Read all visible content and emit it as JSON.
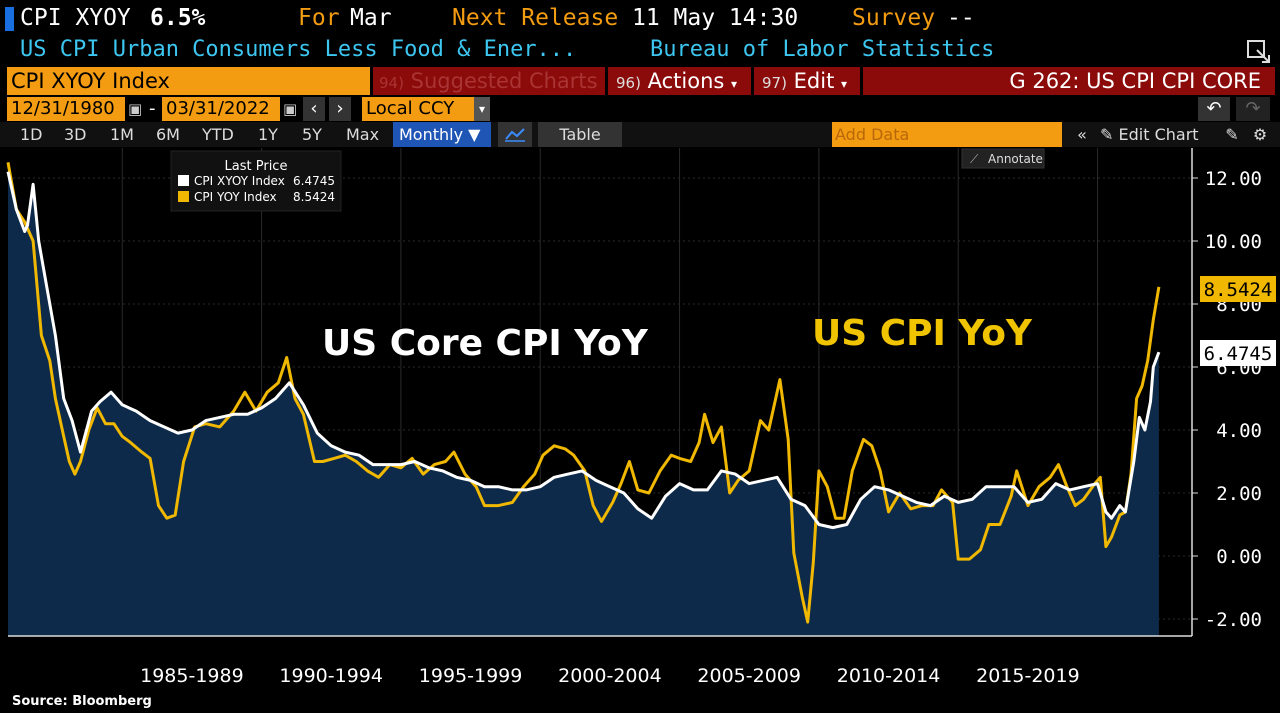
{
  "header": {
    "ticker": "CPI XYOY",
    "value": "6.5%",
    "for_label": "For",
    "for_value": "Mar",
    "next_release_label": "Next Release",
    "next_release_value": "11 May 14:30",
    "survey_label": "Survey",
    "survey_value": "--",
    "description": "US CPI Urban Consumers Less Food & Ener...",
    "source_org": "Bureau of Labor Statistics"
  },
  "command_bar": {
    "security": "CPI XYOY Index",
    "suggested_num": "94)",
    "suggested_label": "Suggested Charts",
    "actions_num": "96)",
    "actions_label": "Actions",
    "edit_num": "97)",
    "edit_label": "Edit",
    "page_title": "G 262: US CPI CPI CORE"
  },
  "date_bar": {
    "start_date": "12/31/1980",
    "separator": "-",
    "end_date": "03/31/2022",
    "currency": "Local CCY"
  },
  "toolbar": {
    "periods": [
      "1D",
      "3D",
      "1M",
      "6M",
      "YTD",
      "1Y",
      "5Y",
      "Max"
    ],
    "frequency": "Monthly",
    "table_label": "Table",
    "add_data_placeholder": "Add Data",
    "edit_chart_label": "Edit Chart",
    "annotate_label": "Annotate"
  },
  "legend": {
    "title": "Last Price",
    "items": [
      {
        "name": "CPI XYOY Index",
        "value": "6.4745",
        "color": "#ffffff"
      },
      {
        "name": "CPI YOY Index",
        "value": "8.5424",
        "color": "#f0b800"
      }
    ]
  },
  "colors": {
    "accent_orange": "#f39c12",
    "bar_red": "#8b0a0a",
    "core_series": "#ffffff",
    "headline_series": "#f0b800",
    "area_fill": "#0d2a4a"
  },
  "footer": {
    "source": "Source: Bloomberg"
  },
  "chart_data": {
    "type": "line",
    "annotations": [
      "US Core CPI YoY",
      "US CPI YoY"
    ],
    "x_tick_labels": [
      "1985-1989",
      "1990-1994",
      "1995-1999",
      "2000-2004",
      "2005-2009",
      "2010-2014",
      "2015-2019"
    ],
    "y_tick_labels": [
      "12.00",
      "10.00",
      "8.00",
      "6.00",
      "4.00",
      "2.00",
      "0.00",
      "-2.00"
    ],
    "ylim": [
      -2.6,
      13.0
    ],
    "xlim": [
      1980.9,
      2022.6
    ],
    "grid": true,
    "legend_position": "top-left",
    "last_value_labels": [
      "8.5424",
      "6.4745"
    ],
    "series": [
      {
        "name": "CPI XYOY Index",
        "color": "#ffffff",
        "fill": true,
        "points": [
          [
            1980.9,
            12.2
          ],
          [
            1981.2,
            11.0
          ],
          [
            1981.5,
            10.3
          ],
          [
            1981.6,
            10.5
          ],
          [
            1981.8,
            11.8
          ],
          [
            1982.0,
            10.0
          ],
          [
            1982.3,
            8.5
          ],
          [
            1982.6,
            7.0
          ],
          [
            1982.9,
            5.0
          ],
          [
            1983.2,
            4.3
          ],
          [
            1983.5,
            3.3
          ],
          [
            1983.9,
            4.6
          ],
          [
            1984.2,
            4.9
          ],
          [
            1984.6,
            5.2
          ],
          [
            1985.0,
            4.8
          ],
          [
            1985.5,
            4.6
          ],
          [
            1986.0,
            4.3
          ],
          [
            1986.5,
            4.1
          ],
          [
            1987.0,
            3.9
          ],
          [
            1987.5,
            4.0
          ],
          [
            1988.0,
            4.3
          ],
          [
            1988.5,
            4.4
          ],
          [
            1989.0,
            4.5
          ],
          [
            1989.5,
            4.5
          ],
          [
            1990.0,
            4.7
          ],
          [
            1990.5,
            5.0
          ],
          [
            1991.0,
            5.5
          ],
          [
            1991.5,
            4.8
          ],
          [
            1992.0,
            3.9
          ],
          [
            1992.5,
            3.5
          ],
          [
            1993.0,
            3.3
          ],
          [
            1993.5,
            3.2
          ],
          [
            1994.0,
            2.9
          ],
          [
            1994.5,
            2.9
          ],
          [
            1995.0,
            2.9
          ],
          [
            1995.5,
            3.0
          ],
          [
            1996.0,
            2.8
          ],
          [
            1996.5,
            2.7
          ],
          [
            1997.0,
            2.5
          ],
          [
            1997.5,
            2.4
          ],
          [
            1998.0,
            2.2
          ],
          [
            1998.5,
            2.2
          ],
          [
            1999.0,
            2.1
          ],
          [
            1999.5,
            2.1
          ],
          [
            2000.0,
            2.2
          ],
          [
            2000.5,
            2.5
          ],
          [
            2001.0,
            2.6
          ],
          [
            2001.5,
            2.7
          ],
          [
            2002.0,
            2.4
          ],
          [
            2002.5,
            2.2
          ],
          [
            2003.0,
            2.0
          ],
          [
            2003.5,
            1.5
          ],
          [
            2004.0,
            1.2
          ],
          [
            2004.5,
            1.9
          ],
          [
            2005.0,
            2.3
          ],
          [
            2005.5,
            2.1
          ],
          [
            2006.0,
            2.1
          ],
          [
            2006.5,
            2.7
          ],
          [
            2007.0,
            2.6
          ],
          [
            2007.5,
            2.3
          ],
          [
            2008.0,
            2.4
          ],
          [
            2008.5,
            2.5
          ],
          [
            2009.0,
            1.8
          ],
          [
            2009.5,
            1.6
          ],
          [
            2010.0,
            1.0
          ],
          [
            2010.5,
            0.9
          ],
          [
            2011.0,
            1.0
          ],
          [
            2011.5,
            1.8
          ],
          [
            2012.0,
            2.2
          ],
          [
            2012.5,
            2.1
          ],
          [
            2013.0,
            1.9
          ],
          [
            2013.5,
            1.7
          ],
          [
            2014.0,
            1.6
          ],
          [
            2014.5,
            1.9
          ],
          [
            2015.0,
            1.7
          ],
          [
            2015.5,
            1.8
          ],
          [
            2016.0,
            2.2
          ],
          [
            2016.5,
            2.2
          ],
          [
            2017.0,
            2.2
          ],
          [
            2017.5,
            1.7
          ],
          [
            2018.0,
            1.8
          ],
          [
            2018.5,
            2.3
          ],
          [
            2019.0,
            2.1
          ],
          [
            2019.5,
            2.2
          ],
          [
            2020.0,
            2.3
          ],
          [
            2020.3,
            1.4
          ],
          [
            2020.5,
            1.2
          ],
          [
            2020.8,
            1.6
          ],
          [
            2021.0,
            1.4
          ],
          [
            2021.3,
            3.0
          ],
          [
            2021.5,
            4.4
          ],
          [
            2021.7,
            4.0
          ],
          [
            2021.9,
            4.9
          ],
          [
            2022.0,
            6.0
          ],
          [
            2022.2,
            6.4745
          ]
        ]
      },
      {
        "name": "CPI YOY Index",
        "color": "#f0b800",
        "fill": false,
        "points": [
          [
            1980.9,
            12.5
          ],
          [
            1981.2,
            11.0
          ],
          [
            1981.5,
            10.6
          ],
          [
            1981.8,
            10.0
          ],
          [
            1982.1,
            7.0
          ],
          [
            1982.4,
            6.2
          ],
          [
            1982.6,
            5.0
          ],
          [
            1982.9,
            3.8
          ],
          [
            1983.1,
            3.0
          ],
          [
            1983.3,
            2.6
          ],
          [
            1983.5,
            3.0
          ],
          [
            1983.8,
            4.0
          ],
          [
            1984.1,
            4.7
          ],
          [
            1984.4,
            4.2
          ],
          [
            1984.7,
            4.2
          ],
          [
            1985.0,
            3.8
          ],
          [
            1985.3,
            3.6
          ],
          [
            1985.7,
            3.3
          ],
          [
            1986.0,
            3.1
          ],
          [
            1986.3,
            1.6
          ],
          [
            1986.6,
            1.2
          ],
          [
            1986.9,
            1.3
          ],
          [
            1987.2,
            3.0
          ],
          [
            1987.6,
            4.1
          ],
          [
            1988.0,
            4.2
          ],
          [
            1988.5,
            4.1
          ],
          [
            1989.0,
            4.6
          ],
          [
            1989.4,
            5.2
          ],
          [
            1989.8,
            4.6
          ],
          [
            1990.2,
            5.2
          ],
          [
            1990.6,
            5.5
          ],
          [
            1990.9,
            6.3
          ],
          [
            1991.2,
            5.0
          ],
          [
            1991.5,
            4.5
          ],
          [
            1991.9,
            3.0
          ],
          [
            1992.2,
            3.0
          ],
          [
            1992.6,
            3.1
          ],
          [
            1993.0,
            3.2
          ],
          [
            1993.4,
            3.0
          ],
          [
            1993.8,
            2.7
          ],
          [
            1994.2,
            2.5
          ],
          [
            1994.6,
            2.9
          ],
          [
            1995.0,
            2.8
          ],
          [
            1995.4,
            3.1
          ],
          [
            1995.8,
            2.6
          ],
          [
            1996.2,
            2.9
          ],
          [
            1996.6,
            3.0
          ],
          [
            1996.9,
            3.3
          ],
          [
            1997.3,
            2.6
          ],
          [
            1997.7,
            2.2
          ],
          [
            1998.0,
            1.6
          ],
          [
            1998.5,
            1.6
          ],
          [
            1999.0,
            1.7
          ],
          [
            1999.4,
            2.2
          ],
          [
            1999.8,
            2.6
          ],
          [
            2000.1,
            3.2
          ],
          [
            2000.5,
            3.5
          ],
          [
            2000.9,
            3.4
          ],
          [
            2001.2,
            3.2
          ],
          [
            2001.6,
            2.7
          ],
          [
            2001.9,
            1.6
          ],
          [
            2002.2,
            1.1
          ],
          [
            2002.6,
            1.7
          ],
          [
            2002.9,
            2.3
          ],
          [
            2003.2,
            3.0
          ],
          [
            2003.5,
            2.1
          ],
          [
            2003.9,
            2.0
          ],
          [
            2004.3,
            2.7
          ],
          [
            2004.7,
            3.2
          ],
          [
            2005.0,
            3.1
          ],
          [
            2005.4,
            3.0
          ],
          [
            2005.7,
            3.6
          ],
          [
            2005.9,
            4.5
          ],
          [
            2006.2,
            3.6
          ],
          [
            2006.5,
            4.1
          ],
          [
            2006.8,
            2.0
          ],
          [
            2007.1,
            2.4
          ],
          [
            2007.5,
            2.7
          ],
          [
            2007.9,
            4.3
          ],
          [
            2008.2,
            4.0
          ],
          [
            2008.6,
            5.6
          ],
          [
            2008.9,
            3.7
          ],
          [
            2009.1,
            0.1
          ],
          [
            2009.4,
            -1.3
          ],
          [
            2009.6,
            -2.1
          ],
          [
            2009.8,
            -0.2
          ],
          [
            2010.0,
            2.7
          ],
          [
            2010.3,
            2.2
          ],
          [
            2010.6,
            1.2
          ],
          [
            2010.9,
            1.2
          ],
          [
            2011.2,
            2.7
          ],
          [
            2011.6,
            3.7
          ],
          [
            2011.9,
            3.5
          ],
          [
            2012.2,
            2.7
          ],
          [
            2012.5,
            1.4
          ],
          [
            2012.9,
            2.0
          ],
          [
            2013.3,
            1.5
          ],
          [
            2013.7,
            1.6
          ],
          [
            2014.1,
            1.6
          ],
          [
            2014.4,
            2.1
          ],
          [
            2014.8,
            1.7
          ],
          [
            2015.0,
            -0.1
          ],
          [
            2015.4,
            -0.1
          ],
          [
            2015.8,
            0.2
          ],
          [
            2016.1,
            1.0
          ],
          [
            2016.5,
            1.0
          ],
          [
            2016.9,
            1.9
          ],
          [
            2017.1,
            2.7
          ],
          [
            2017.5,
            1.6
          ],
          [
            2017.9,
            2.2
          ],
          [
            2018.3,
            2.5
          ],
          [
            2018.6,
            2.9
          ],
          [
            2018.9,
            2.2
          ],
          [
            2019.2,
            1.6
          ],
          [
            2019.5,
            1.8
          ],
          [
            2019.9,
            2.3
          ],
          [
            2020.1,
            2.5
          ],
          [
            2020.3,
            0.3
          ],
          [
            2020.5,
            0.6
          ],
          [
            2020.8,
            1.3
          ],
          [
            2021.0,
            1.4
          ],
          [
            2021.2,
            2.6
          ],
          [
            2021.4,
            5.0
          ],
          [
            2021.6,
            5.4
          ],
          [
            2021.8,
            6.2
          ],
          [
            2022.0,
            7.5
          ],
          [
            2022.2,
            8.5424
          ]
        ]
      }
    ]
  }
}
